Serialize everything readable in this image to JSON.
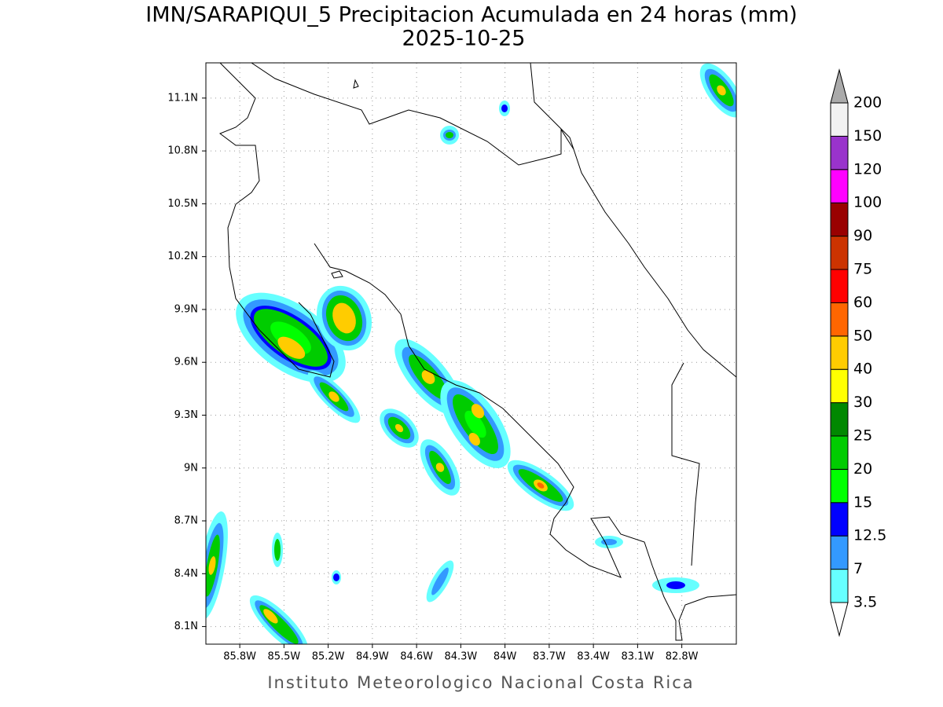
{
  "title": "IMN/SARAPIQUI_5 Precipitacion Acumulada en 24 horas (mm)",
  "subtitle": "2025-10-25",
  "footer": "Instituto Meteorologico Nacional Costa Rica",
  "map": {
    "lonlim": [
      86.03,
      82.43
    ],
    "latlim": [
      8.0,
      11.3
    ],
    "lon_ticks": [
      {
        "value": 85.8,
        "label": "85.8W"
      },
      {
        "value": 85.5,
        "label": "85.5W"
      },
      {
        "value": 85.2,
        "label": "85.2W"
      },
      {
        "value": 84.9,
        "label": "84.9W"
      },
      {
        "value": 84.6,
        "label": "84.6W"
      },
      {
        "value": 84.3,
        "label": "84.3W"
      },
      {
        "value": 84,
        "label": "84W"
      },
      {
        "value": 83.7,
        "label": "83.7W"
      },
      {
        "value": 83.4,
        "label": "83.4W"
      },
      {
        "value": 83.1,
        "label": "83.1W"
      },
      {
        "value": 82.8,
        "label": "82.8W"
      }
    ],
    "lat_ticks": [
      {
        "value": 11.1,
        "label": "11.1N"
      },
      {
        "value": 10.8,
        "label": "10.8N"
      },
      {
        "value": 10.5,
        "label": "10.5N"
      },
      {
        "value": 10.2,
        "label": "10.2N"
      },
      {
        "value": 9.9,
        "label": "9.9N"
      },
      {
        "value": 9.6,
        "label": "9.6N"
      },
      {
        "value": 9.3,
        "label": "9.3N"
      },
      {
        "value": 9,
        "label": "9N"
      },
      {
        "value": 8.7,
        "label": "8.7N"
      },
      {
        "value": 8.4,
        "label": "8.4N"
      },
      {
        "value": 8.1,
        "label": "8.1N"
      }
    ],
    "grid": true
  },
  "colorbar": {
    "levels": [
      3.5,
      7,
      12.5,
      15,
      20,
      25,
      30,
      40,
      50,
      60,
      75,
      90,
      100,
      120,
      150,
      200
    ],
    "colors": [
      "#66ffff",
      "#3399ff",
      "#0000ff",
      "#00ff00",
      "#00cc00",
      "#008800",
      "#ffff00",
      "#ffcc00",
      "#ff6600",
      "#ff0000",
      "#cc3300",
      "#990000",
      "#ff00ff",
      "#9933cc",
      "#f2f2f2"
    ],
    "under_color": "#ffffff",
    "over_color": "#aaaaaa"
  }
}
